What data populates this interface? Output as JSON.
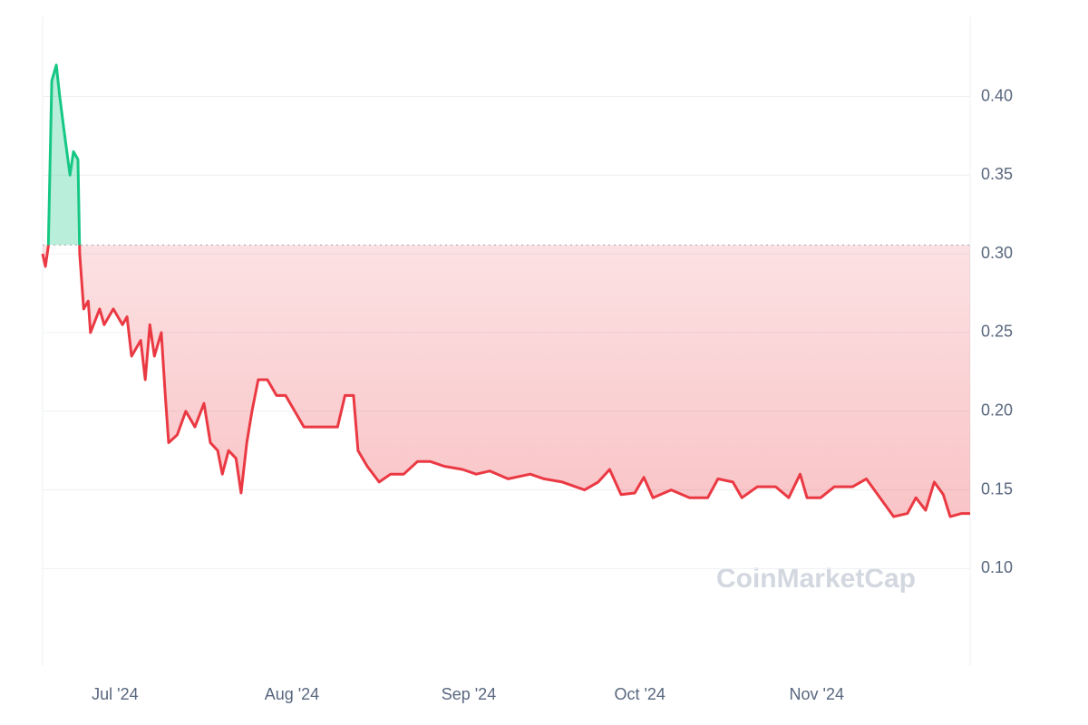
{
  "chart_data": {
    "type": "line",
    "watermark": "CoinMarketCap",
    "x": [
      0,
      0.5,
      1,
      1.6,
      2.4,
      3,
      3.7,
      4.8,
      5.4,
      6.2,
      6.5,
      7.2,
      8,
      8.4,
      10,
      10.8,
      12.4,
      14,
      14.8,
      15.6,
      17.2,
      18,
      18.8,
      19.6,
      20.8,
      21.5,
      22.1,
      23.6,
      25.1,
      26.7,
      28.3,
      29.4,
      30.7,
      31.5,
      32.6,
      33.9,
      34.8,
      35.8,
      36.7,
      37.8,
      39.4,
      41,
      42.6,
      44.2,
      45.8,
      47.4,
      49.8,
      51.7,
      53,
      54.5,
      55.3,
      56.9,
      59,
      61,
      63.3,
      65.7,
      68,
      70.4,
      73.6,
      76,
      78.4,
      81.6,
      85.5,
      87.9,
      91.1,
      95,
      97.4,
      99.4,
      101.4,
      103.8,
      105.4,
      107,
      110.2,
      113.4,
      116.6,
      118.4,
      121,
      122.6,
      125.3,
      128.5,
      130.8,
      132.8,
      134,
      136.4,
      138.8,
      142,
      144.4,
      146.8,
      149.2,
      151.6,
      153.1,
      154.8,
      156.3,
      157.9,
      159.1,
      161.1,
      162.6
    ],
    "values": [
      0.3,
      0.292,
      0.305,
      0.41,
      0.42,
      0.4,
      0.38,
      0.35,
      0.365,
      0.36,
      0.3,
      0.265,
      0.27,
      0.25,
      0.265,
      0.255,
      0.265,
      0.255,
      0.26,
      0.235,
      0.245,
      0.22,
      0.255,
      0.235,
      0.25,
      0.21,
      0.18,
      0.185,
      0.2,
      0.19,
      0.205,
      0.18,
      0.175,
      0.16,
      0.175,
      0.17,
      0.148,
      0.18,
      0.2,
      0.22,
      0.22,
      0.21,
      0.21,
      0.2,
      0.19,
      0.19,
      0.19,
      0.19,
      0.21,
      0.21,
      0.175,
      0.165,
      0.155,
      0.16,
      0.16,
      0.168,
      0.168,
      0.165,
      0.163,
      0.16,
      0.162,
      0.157,
      0.16,
      0.157,
      0.155,
      0.15,
      0.155,
      0.163,
      0.147,
      0.148,
      0.158,
      0.145,
      0.15,
      0.145,
      0.145,
      0.157,
      0.155,
      0.145,
      0.152,
      0.152,
      0.145,
      0.16,
      0.145,
      0.145,
      0.152,
      0.152,
      0.157,
      0.145,
      0.133,
      0.135,
      0.145,
      0.137,
      0.155,
      0.147,
      0.133,
      0.135,
      0.135
    ],
    "baseline": 0.3056,
    "up_color": "#16c784",
    "down_color": "#ea3943",
    "xlim": [
      0,
      162.6
    ],
    "xticks": [
      {
        "value": 12.7,
        "label": "Jul '24"
      },
      {
        "value": 43.7,
        "label": "Aug '24"
      },
      {
        "value": 74.7,
        "label": "Sep '24"
      },
      {
        "value": 104.7,
        "label": "Oct '24"
      },
      {
        "value": 135.7,
        "label": "Nov '24"
      }
    ],
    "ylim": [
      0.038,
      0.451
    ],
    "yticks": [
      {
        "value": 0.1,
        "label": "0.10"
      },
      0.15,
      {
        "value": 0.2,
        "label": "0.20"
      },
      0.25,
      {
        "value": 0.3,
        "label": "0.30"
      },
      0.35,
      {
        "value": 0.4,
        "label": "0.40"
      }
    ],
    "grid": true
  }
}
